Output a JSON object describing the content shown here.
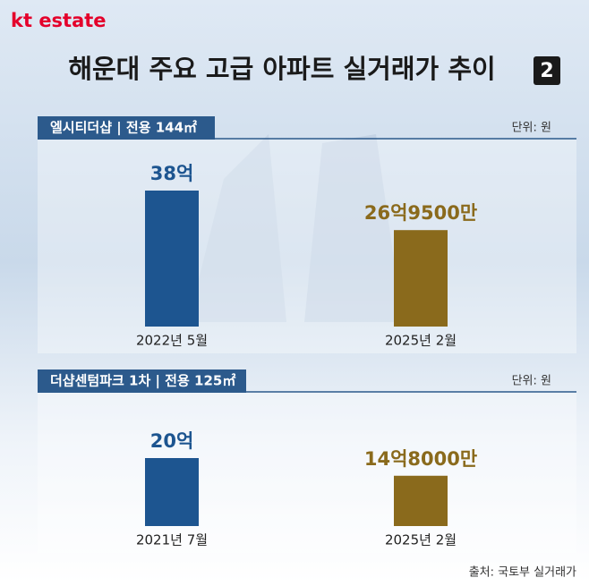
{
  "brand": "kt estate",
  "title": "해운대 주요 고급 아파트 실거래가 추이",
  "badge": "2",
  "source": "출처: 국토부 실거래가",
  "chart_data": [
    {
      "type": "bar",
      "title": "엘시티더샵 | 전용 144㎡",
      "unit": "단위: 원",
      "categories": [
        "2022년 5월",
        "2025년 2월"
      ],
      "values": [
        38,
        26.95
      ],
      "value_labels": [
        "38억",
        "26억9500만"
      ],
      "colors": [
        "#1d5590",
        "#8a6a1c"
      ],
      "ylim": [
        0,
        45
      ]
    },
    {
      "type": "bar",
      "title": "더샵센텀파크 1차 | 전용 125㎡",
      "unit": "단위: 원",
      "categories": [
        "2021년 7월",
        "2025년 2월"
      ],
      "values": [
        20,
        14.8
      ],
      "value_labels": [
        "20억",
        "14억8000만"
      ],
      "colors": [
        "#1d5590",
        "#8a6a1c"
      ],
      "ylim": [
        0,
        30
      ]
    }
  ]
}
